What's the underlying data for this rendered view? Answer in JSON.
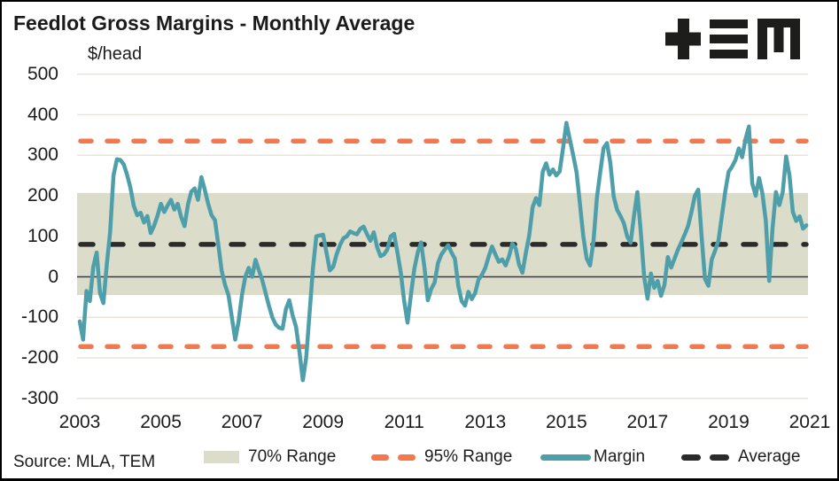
{
  "header": {
    "title": "Feedlot Gross Margins - Monthly Average"
  },
  "footer": {
    "source": "Source: MLA, TEM"
  },
  "logo": {
    "name": "TEM"
  },
  "colors": {
    "margin_line": "#4f9faa",
    "range95_line": "#f4784c",
    "range70_band": "#dcdcca",
    "average_line": "#2b2b2b",
    "gridline": "#e9e5d6",
    "zero_line": "#3c3c3c",
    "text": "#1b1b1b",
    "logo": "#1d1d1b"
  },
  "legend": {
    "items": [
      {
        "label": "70% Range",
        "swatch": "band"
      },
      {
        "label": "95% Range",
        "swatch": "orange-dashes"
      },
      {
        "label": "Margin",
        "swatch": "teal-line"
      },
      {
        "label": "Average",
        "swatch": "black-dashes"
      }
    ]
  },
  "chart_data": {
    "type": "line",
    "title": "Feedlot Gross Margins - Monthly Average",
    "ylabel": "$/head",
    "xlabel": "",
    "frequency": "monthly",
    "x_start": "2003-01",
    "x_end": "2020-12",
    "x_ticks": [
      2003,
      2005,
      2007,
      2009,
      2011,
      2013,
      2015,
      2017,
      2019,
      2021
    ],
    "y_ticks": [
      500,
      400,
      300,
      200,
      100,
      0,
      -100,
      -200,
      -300
    ],
    "ylim": [
      -300,
      500
    ],
    "grid": true,
    "legend_position": "bottom",
    "reference_lines": {
      "average": 80,
      "range_95": {
        "low": -172,
        "high": 335
      },
      "range_70": {
        "low": -45,
        "high": 207
      }
    },
    "series": [
      {
        "name": "Margin",
        "values": [
          -110,
          -155,
          -35,
          -60,
          25,
          60,
          -40,
          -65,
          30,
          110,
          250,
          290,
          288,
          278,
          252,
          220,
          175,
          152,
          158,
          134,
          150,
          108,
          126,
          150,
          180,
          160,
          176,
          190,
          166,
          180,
          148,
          125,
          178,
          210,
          218,
          190,
          246,
          215,
          180,
          152,
          140,
          80,
          15,
          -20,
          -45,
          -100,
          -155,
          -110,
          -45,
          0,
          22,
          0,
          42,
          16,
          -8,
          -40,
          -72,
          -100,
          -118,
          -126,
          -128,
          -80,
          -58,
          -95,
          -123,
          -185,
          -255,
          -200,
          -90,
          20,
          100,
          102,
          104,
          60,
          16,
          25,
          55,
          78,
          95,
          100,
          112,
          108,
          105,
          118,
          124,
          105,
          89,
          110,
          73,
          51,
          55,
          67,
          100,
          106,
          60,
          10,
          -60,
          -113,
          -43,
          20,
          60,
          85,
          23,
          -58,
          -30,
          -14,
          34,
          55,
          67,
          78,
          60,
          45,
          -22,
          -60,
          -71,
          -37,
          -55,
          -40,
          -7,
          5,
          22,
          50,
          75,
          55,
          37,
          43,
          28,
          50,
          82,
          70,
          30,
          10,
          60,
          103,
          172,
          194,
          177,
          259,
          280,
          252,
          265,
          250,
          260,
          317,
          380,
          340,
          300,
          258,
          180,
          100,
          45,
          28,
          86,
          194,
          258,
          318,
          330,
          281,
          198,
          165,
          150,
          132,
          99,
          84,
          150,
          209,
          110,
          0,
          -54,
          8,
          -27,
          -10,
          -47,
          -20,
          49,
          23,
          45,
          67,
          85,
          104,
          126,
          160,
          200,
          215,
          101,
          -5,
          -22,
          43,
          65,
          90,
          150,
          210,
          259,
          272,
          288,
          317,
          295,
          340,
          371,
          230,
          200,
          244,
          205,
          138,
          -10,
          120,
          209,
          177,
          209,
          297,
          250,
          160,
          138,
          149,
          119,
          127
        ]
      }
    ]
  }
}
